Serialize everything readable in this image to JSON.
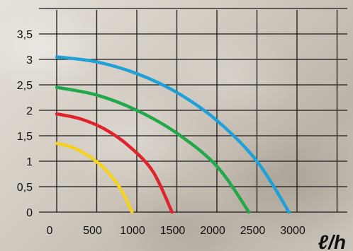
{
  "chart_data": {
    "type": "line",
    "x_ticks": [
      "0",
      "500",
      "1000",
      "1500",
      "2000",
      "2500",
      "3000"
    ],
    "y_ticks": [
      "0",
      "0,5",
      "1",
      "1,5",
      "2",
      "2,5",
      "3",
      "3,5"
    ],
    "xlabel": "ℓ/h",
    "ylabel": "",
    "xlim": [
      0,
      3500
    ],
    "ylim": [
      0,
      4
    ],
    "grid": true,
    "series": [
      {
        "color": "#f5d21e",
        "x": [
          0,
          200,
          400,
          600,
          800,
          940
        ],
        "y": [
          1.35,
          1.27,
          1.1,
          0.85,
          0.45,
          0.0
        ]
      },
      {
        "color": "#e0232b",
        "x": [
          0,
          300,
          600,
          900,
          1200,
          1440
        ],
        "y": [
          1.93,
          1.83,
          1.63,
          1.3,
          0.8,
          0.0
        ]
      },
      {
        "color": "#22a84a",
        "x": [
          0,
          500,
          1000,
          1500,
          2000,
          2400
        ],
        "y": [
          2.45,
          2.3,
          2.0,
          1.55,
          0.9,
          0.0
        ]
      },
      {
        "color": "#1fa0d6",
        "x": [
          0,
          500,
          1000,
          1500,
          2000,
          2500,
          2900
        ],
        "y": [
          3.05,
          2.95,
          2.72,
          2.35,
          1.8,
          1.0,
          0.0
        ]
      }
    ]
  }
}
